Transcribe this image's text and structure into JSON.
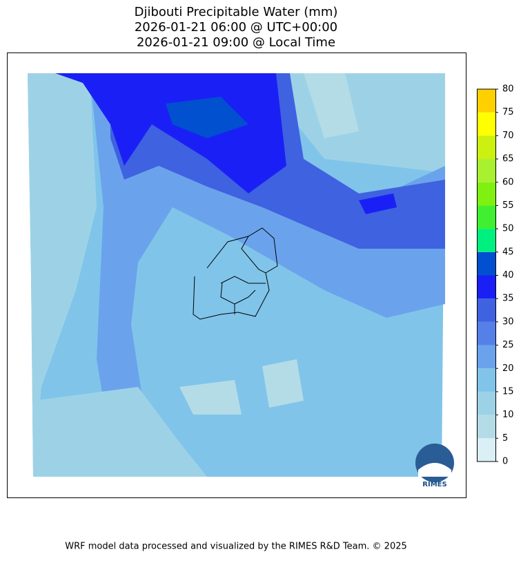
{
  "title": [
    "Djibouti Precipitable Water (mm)",
    "2026-01-21 06:00 @ UTC+00:00",
    "2026-01-21 09:00 @ Local Time"
  ],
  "colorbar": {
    "ticks": [
      0,
      5,
      10,
      15,
      20,
      25,
      30,
      35,
      40,
      45,
      50,
      55,
      60,
      65,
      70,
      75,
      80
    ],
    "colors": [
      "#dbeff7",
      "#b4dce6",
      "#9dd2e6",
      "#80c4ea",
      "#6aa3ec",
      "#5580e8",
      "#3f62e0",
      "#1a20f5",
      "#0050d0",
      "#00f080",
      "#40f030",
      "#80f010",
      "#a8f030",
      "#ccf010",
      "#ffff00",
      "#ffd000"
    ]
  },
  "logo": "RIMES",
  "footer": "WRF model data processed and visualized by the RIMES R&D Team. © 2025"
}
